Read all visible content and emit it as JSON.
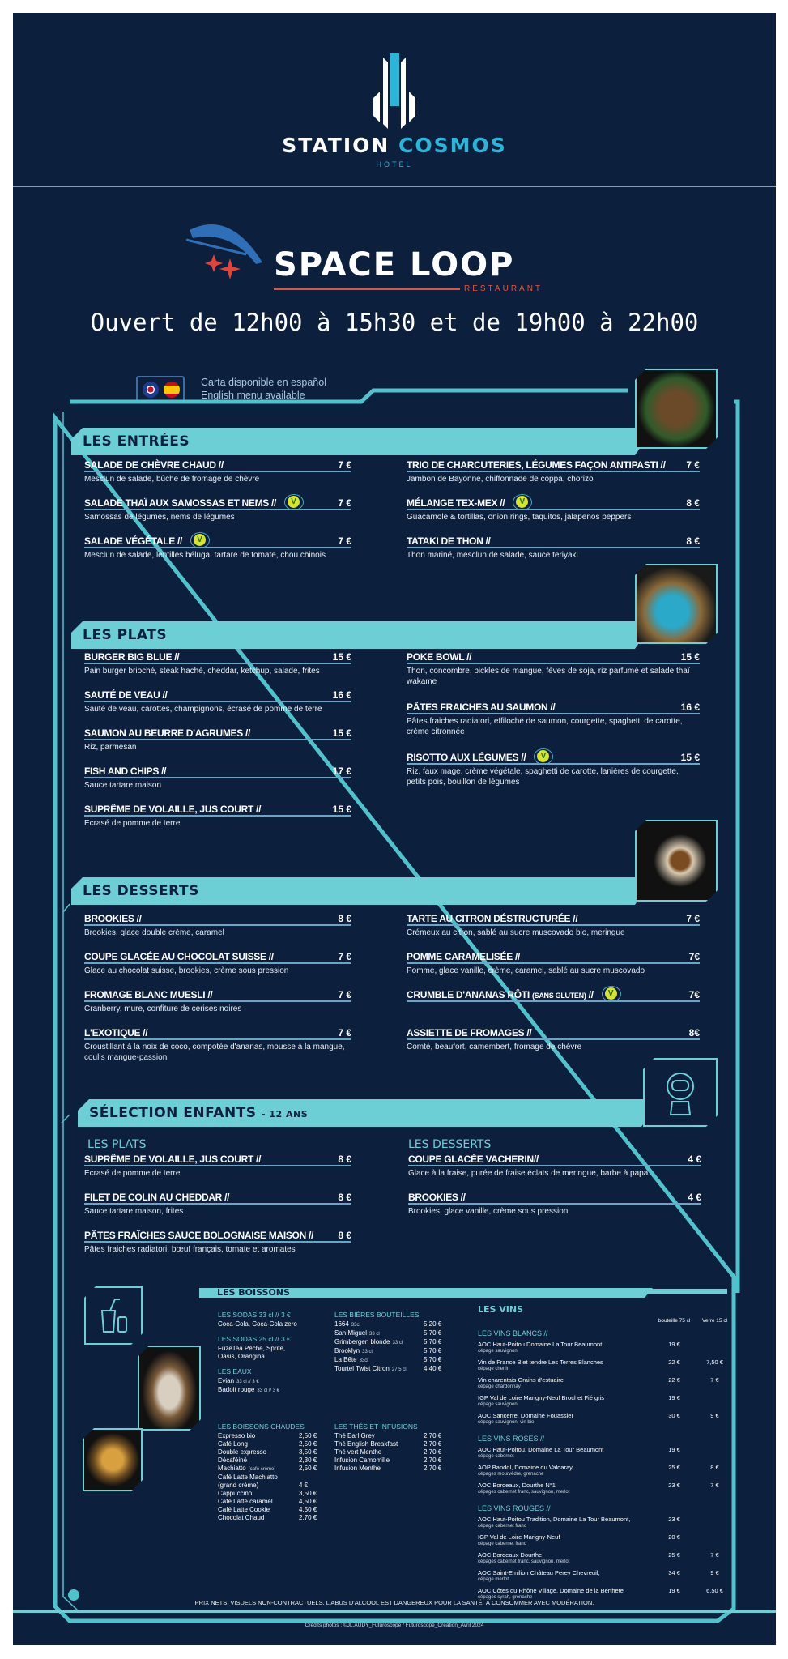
{
  "hotel": {
    "name_part1": "STATION",
    "name_part2": "COSMOS",
    "sub": "HOTEL"
  },
  "restaurant": {
    "name": "SPACE LOOP",
    "sub": "RESTAURANT"
  },
  "hours": "Ouvert de 12h00 à 15h30 et de 19h00 à 22h00",
  "languages": {
    "spanish": "Carta disponible en español",
    "english": "English menu available"
  },
  "colors": {
    "background": "#0c1f3d",
    "accent": "#6ccfd6",
    "vegetarian": "#d4e52b",
    "logo_red": "#e0553f"
  },
  "entrees": {
    "title": "LES ENTRÉES",
    "left": [
      {
        "name": "SALADE DE CHÈVRE CHAUD //",
        "price": "7 €",
        "desc": "Mesclun de salade, bûche de fromage de chèvre"
      },
      {
        "name": "SALADE THAÏ AUX SAMOSSAS ET NEMS //",
        "price": "7 €",
        "desc": "Samossas de légumes, nems de légumes",
        "veg": true
      },
      {
        "name": "SALADE VÉGÉTALE //",
        "price": "7 €",
        "desc": "Mesclun de salade, lentilles béluga, tartare de tomate, chou chinois",
        "veg": true
      }
    ],
    "right": [
      {
        "name": "TRIO DE CHARCUTERIES, LÉGUMES FAÇON ANTIPASTI //",
        "price": "7 €",
        "desc": "Jambon de Bayonne, chiffonnade de coppa, chorizo"
      },
      {
        "name": "MÉLANGE TEX-MEX //",
        "price": "8 €",
        "desc": "Guacamole & tortillas, onion rings, taquitos, jalapenos peppers",
        "veg": true
      },
      {
        "name": "TATAKI DE THON //",
        "price": "8 €",
        "desc": "Thon mariné, mesclun de salade, sauce teriyaki"
      }
    ]
  },
  "plats": {
    "title": "LES PLATS",
    "left": [
      {
        "name": "BURGER BIG BLUE //",
        "price": "15 €",
        "desc": "Pain burger brioché, steak haché, cheddar, ketchup, salade, frites"
      },
      {
        "name": "SAUTÉ DE VEAU //",
        "price": "16 €",
        "desc": "Sauté de veau, carottes, champignons, écrasé de pomme de terre"
      },
      {
        "name": "SAUMON AU BEURRE D'AGRUMES //",
        "price": "15 €",
        "desc": "Riz, parmesan"
      },
      {
        "name": "FISH AND CHIPS //",
        "price": "17 €",
        "desc": "Sauce tartare maison"
      },
      {
        "name": "SUPRÊME DE VOLAILLE, JUS COURT //",
        "price": "15 €",
        "desc": "Ecrasé de pomme de terre"
      }
    ],
    "right": [
      {
        "name": "POKE BOWL //",
        "price": "15 €",
        "desc": "Thon, concombre, pickles de mangue, fèves de soja, riz parfumé et salade thaï wakame",
        "tall": true
      },
      {
        "name": "PÂTES FRAICHES AU SAUMON //",
        "price": "16 €",
        "desc": "Pâtes fraiches radiatori, effiloché de saumon, courgette, spaghetti de carotte, crème citronnée",
        "tall": true
      },
      {
        "name": "RISOTTO AUX LÉGUMES //",
        "price": "15 €",
        "desc": "Riz, faux mage, crème végétale, spaghetti de carotte, lanières de courgette, petits pois, bouillon de légumes",
        "veg": true,
        "tall": true
      }
    ]
  },
  "desserts": {
    "title": "LES DESSERTS",
    "left": [
      {
        "name": "BROOKIES //",
        "price": "8 €",
        "desc": "Brookies, glace double crème, caramel"
      },
      {
        "name": "COUPE GLACÉE AU CHOCOLAT SUISSE //",
        "price": "7 €",
        "desc": "Glace au chocolat suisse, brookies, crème sous pression"
      },
      {
        "name": "FROMAGE BLANC MUESLI //",
        "price": "7 €",
        "desc": "Cranberry, mure, confiture de cerises noires"
      },
      {
        "name": "L'EXOTIQUE //",
        "price": "7 €",
        "desc": "Croustillant à la noix de coco, compotée d'ananas, mousse à la mangue, coulis mangue-passion"
      }
    ],
    "right": [
      {
        "name": "TARTE AU CITRON DÉSTRUCTURÉE //",
        "price": "7 €",
        "desc": "Crémeux au citron, sablé au sucre muscovado bio, meringue"
      },
      {
        "name": "POMME CARAMELISÉE //",
        "price": "7€",
        "desc": "Pomme, glace vanille, crème, caramel, sablé au sucre muscovado"
      },
      {
        "name": "CRUMBLE D'ANANAS RÔTI",
        "note": "(SANS GLUTEN)",
        "suffix": "//",
        "price": "7€",
        "desc": "",
        "veg": true
      },
      {
        "name": "ASSIETTE DE FROMAGES //",
        "price": "8€",
        "desc": "Comté, beaufort, camembert, fromage de chèvre"
      }
    ]
  },
  "kids": {
    "title": "SÉLECTION ENFANTS",
    "age": "- 12 ANS",
    "plats_title": "LES PLATS",
    "desserts_title": "LES DESSERTS",
    "left": [
      {
        "name": "SUPRÊME DE VOLAILLE, JUS COURT //",
        "price": "8 €",
        "desc": "Ecrasé de pomme de terre"
      },
      {
        "name": "FILET DE COLIN AU CHEDDAR //",
        "price": "8 €",
        "desc": "Sauce tartare maison, frites"
      },
      {
        "name": "PÂTES FRAÎCHES SAUCE BOLOGNAISE MAISON //",
        "price": "8 €",
        "desc": "Pâtes fraiches radiatori, bœuf français, tomate et aromates"
      }
    ],
    "right": [
      {
        "name": "COUPE GLACÉE VACHERIN//",
        "price": "4 €",
        "desc": "Glace à la fraise, purée de fraise éclats de meringue, barbe à papa"
      },
      {
        "name": "BROOKIES //",
        "price": "4 €",
        "desc": "Brookies, glace vanille, crème sous pression"
      }
    ]
  },
  "boissons": {
    "title": "LES BOISSONS",
    "col1": [
      {
        "type": "head",
        "text": "LES SODAS 33 cl // 3 €"
      },
      {
        "type": "line",
        "name": "Coca-Cola, Coca-Cola zero"
      },
      {
        "type": "head",
        "text": "LES SODAS 25 cl // 3 €"
      },
      {
        "type": "line",
        "name": "FuzeTea Pêche, Sprite,"
      },
      {
        "type": "line",
        "name": "Oasis, Orangina"
      },
      {
        "type": "head",
        "text": "LES EAUX"
      },
      {
        "type": "line",
        "name": "Evian",
        "size": "33 cl // 3 €"
      },
      {
        "type": "line",
        "name": "Badoit rouge",
        "size": "33 cl // 3 €"
      }
    ],
    "col2": [
      {
        "type": "head",
        "text": "LES BIÈRES BOUTEILLES"
      },
      {
        "type": "line",
        "name": "1664",
        "size": "33cl",
        "price": "5,20 €"
      },
      {
        "type": "line",
        "name": "San Miguel",
        "size": "33 cl",
        "price": "5,70 €"
      },
      {
        "type": "line",
        "name": "Grimbergen blonde",
        "size": "33 cl",
        "price": "5,70 €"
      },
      {
        "type": "line",
        "name": "Brooklyn",
        "size": "33 cl",
        "price": "5,70 €"
      },
      {
        "type": "line",
        "name": "La Bête",
        "size": "33cl",
        "price": "5,70 €"
      },
      {
        "type": "line",
        "name": "Tourtel Twist Citron",
        "size": "27,5 cl",
        "price": "4,40 €"
      }
    ],
    "col3": [
      {
        "type": "head",
        "text": "LES BOISSONS CHAUDES"
      },
      {
        "type": "line",
        "name": "Expresso bio",
        "price": "2,50 €"
      },
      {
        "type": "line",
        "name": "Café Long",
        "price": "2,50 €"
      },
      {
        "type": "line",
        "name": "Double expresso",
        "price": "3,50 €"
      },
      {
        "type": "line",
        "name": "Décaféiné",
        "price": "2,30 €"
      },
      {
        "type": "line",
        "name": "Machiatto",
        "size": "(café crème)",
        "price": "2,50 €"
      },
      {
        "type": "line",
        "name": "Café Latte Machiatto"
      },
      {
        "type": "line",
        "name": "(grand crème)",
        "price": "4 €"
      },
      {
        "type": "line",
        "name": "Cappuccino",
        "price": "3,50 €"
      },
      {
        "type": "line",
        "name": "Café Latte caramel",
        "price": "4,50 €"
      },
      {
        "type": "line",
        "name": "Café Latte Cookie",
        "price": "4,50 €"
      },
      {
        "type": "line",
        "name": "Chocolat Chaud",
        "price": "2,70 €"
      }
    ],
    "col4": [
      {
        "type": "head",
        "text": "LES THÉS ET INFUSIONS"
      },
      {
        "type": "line",
        "name": "Thé Earl Grey",
        "price": "2,70 €"
      },
      {
        "type": "line",
        "name": "Thé English Breakfast",
        "price": "2,70 €"
      },
      {
        "type": "line",
        "name": "Thé vert Menthe",
        "price": "2,70 €"
      },
      {
        "type": "line",
        "name": "Infusion Camomille",
        "price": "2,70 €"
      },
      {
        "type": "line",
        "name": "Infusion Menthe",
        "price": "2,70 €"
      }
    ]
  },
  "vins": {
    "title": "LES VINS",
    "col_bottle": "bouteille 75 cl",
    "col_glass": "Verre 15 cl",
    "groups": [
      {
        "title": "LES VINS BLANCS //",
        "wines": [
          {
            "name": "AOC Haut-Poitou Domaine La Tour Beaumont,",
            "grape": "cépage sauvignon",
            "bottle": "19 €",
            "glass": ""
          },
          {
            "name": "Vin de France Blet tendre Les Terres Blanches",
            "grape": "cépage chenin",
            "bottle": "22 €",
            "glass": "7,50 €"
          },
          {
            "name": "Vin charentais Grains d'estuaire",
            "grape": "cépage chardonnay",
            "bottle": "22 €",
            "glass": "7 €"
          },
          {
            "name": "IGP Val de Loire Marigny-Neuf Brochet Fié gris",
            "grape": "cépage sauvignon",
            "bottle": "19 €",
            "glass": ""
          },
          {
            "name": "AOC Sancerre, Domaine Fouassier",
            "grape": "cépage sauvignon, vin bio",
            "bottle": "30 €",
            "glass": "9 €"
          }
        ]
      },
      {
        "title": "LES VINS ROSÉS //",
        "wines": [
          {
            "name": "AOC Haut-Poitou, Domaine La Tour Beaumont",
            "grape": "cépage cabernet",
            "bottle": "19 €",
            "glass": ""
          },
          {
            "name": "AOP Bandol, Domaine du Valdaray",
            "grape": "cépages mourvèdre, grenache",
            "bottle": "25 €",
            "glass": "8 €"
          },
          {
            "name": "AOC Bordeaux, Dourthe N°1",
            "grape": "cépages cabernet franc, sauvignon, merlot",
            "bottle": "23 €",
            "glass": "7 €"
          }
        ]
      },
      {
        "title": "LES VINS ROUGES //",
        "wines": [
          {
            "name": "AOC Haut-Poitou Tradition, Domaine La Tour Beaumont,",
            "grape": "cépage cabernet franc",
            "bottle": "23 €",
            "glass": ""
          },
          {
            "name": "IGP Val de Loire Marigny-Neuf",
            "grape": "cépage cabernet franc",
            "bottle": "20 €",
            "glass": ""
          },
          {
            "name": "AOC Bordeaux Dourthe,",
            "grape": "cépages cabernet franc, sauvignon, merlot",
            "bottle": "25 €",
            "glass": "7 €"
          },
          {
            "name": "AOC Saint-Emilion Château Perey Chevreuil,",
            "grape": "cépage merlot",
            "bottle": "34 €",
            "glass": "9 €"
          },
          {
            "name": "AOC Côtes du Rhône Village, Domaine de la Berthete",
            "grape": "cépages syrah, grenache",
            "bottle": "19 €",
            "glass": "6,50 €"
          }
        ]
      }
    ]
  },
  "footer": {
    "notice": "PRIX NETS. VISUELS NON-CONTRACTUELS. L'ABUS D'ALCOOL EST DANGEREUX POUR LA SANTÉ. À CONSOMMER AVEC MODÉRATION.",
    "credits": "Crédits photos : ©JL.AUDY_Futuroscope / Futuroscope_Creation_Avril 2024"
  }
}
